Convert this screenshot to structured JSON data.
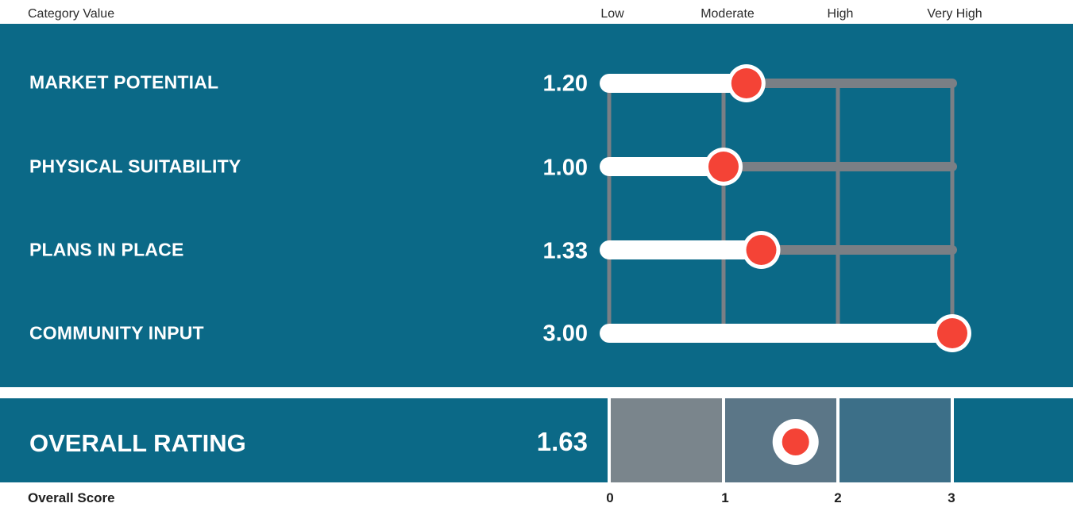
{
  "header": {
    "category_label": "Category Value",
    "levels": [
      "Low",
      "Moderate",
      "High",
      "Very High"
    ]
  },
  "rows": [
    {
      "label": "MARKET POTENTIAL",
      "value_text": "1.20"
    },
    {
      "label": "PHYSICAL SUITABILITY",
      "value_text": "1.00"
    },
    {
      "label": "PLANS IN PLACE",
      "value_text": "1.33"
    },
    {
      "label": "COMMUNITY INPUT",
      "value_text": "3.00"
    }
  ],
  "overall": {
    "label": "OVERALL RATING",
    "value_text": "1.63"
  },
  "footer": {
    "score_label": "Overall Score",
    "ticks": [
      "0",
      "1",
      "2",
      "3"
    ]
  },
  "colors": {
    "panel": "#0b6987",
    "track": "#7a7f85",
    "fill": "#ffffff",
    "marker": "#f44336",
    "band_low": "#7a858c",
    "band_mid": "#5b7687",
    "band_high": "#3c6f88"
  },
  "chart_data": [
    {
      "type": "bar",
      "categories": [
        "MARKET POTENTIAL",
        "PHYSICAL SUITABILITY",
        "PLANS IN PLACE",
        "COMMUNITY INPUT"
      ],
      "values": [
        1.2,
        1.0,
        1.33,
        3.0
      ],
      "xlim": [
        0,
        3
      ],
      "grid": true
    },
    {
      "type": "scatter",
      "categories": [
        "OVERALL RATING"
      ],
      "values": [
        1.63
      ],
      "xlim": [
        0,
        3
      ],
      "tick_labels": [
        "0",
        "1",
        "2",
        "3"
      ]
    }
  ]
}
